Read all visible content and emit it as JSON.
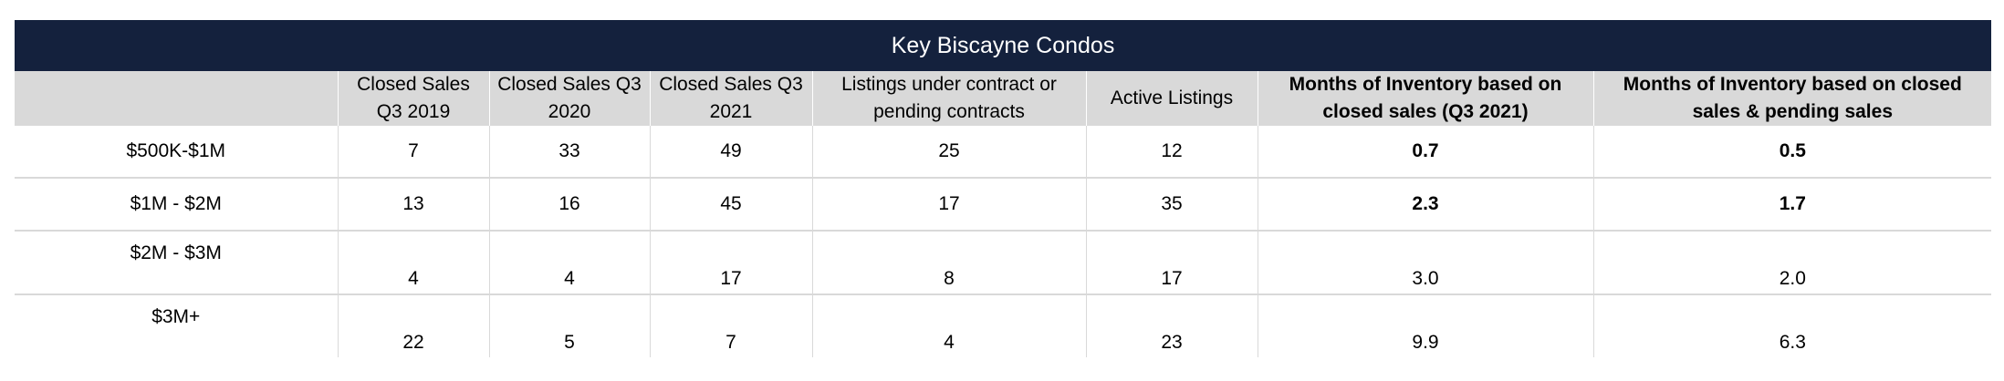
{
  "table": {
    "title": "Key Biscayne Condos",
    "headers": [
      "",
      "Closed Sales Q3 2019",
      "Closed Sales Q3 2020",
      "Closed Sales Q3 2021",
      "Listings under contract or pending contracts",
      "Active Listings",
      "Months of Inventory based on closed sales (Q3 2021)",
      "Months of Inventory based on closed sales & pending sales"
    ],
    "rows": [
      {
        "range": "$500K-$1M",
        "cells": [
          "7",
          "33",
          "49",
          "25",
          "12",
          "0.7",
          "0.5"
        ]
      },
      {
        "range": "$1M - $2M",
        "cells": [
          "13",
          "16",
          "45",
          "17",
          "35",
          "2.3",
          "1.7"
        ]
      },
      {
        "range": "$2M - $3M",
        "cells": [
          "4",
          "4",
          "17",
          "8",
          "17",
          "3.0",
          "2.0"
        ]
      },
      {
        "range": "$3M+",
        "cells": [
          "22",
          "5",
          "7",
          "4",
          "23",
          "9.9",
          "6.3"
        ]
      }
    ]
  },
  "colors": {
    "title_bg": "#14213d",
    "header_bg": "#d9d9d9",
    "grid": "#d9d9d9"
  }
}
